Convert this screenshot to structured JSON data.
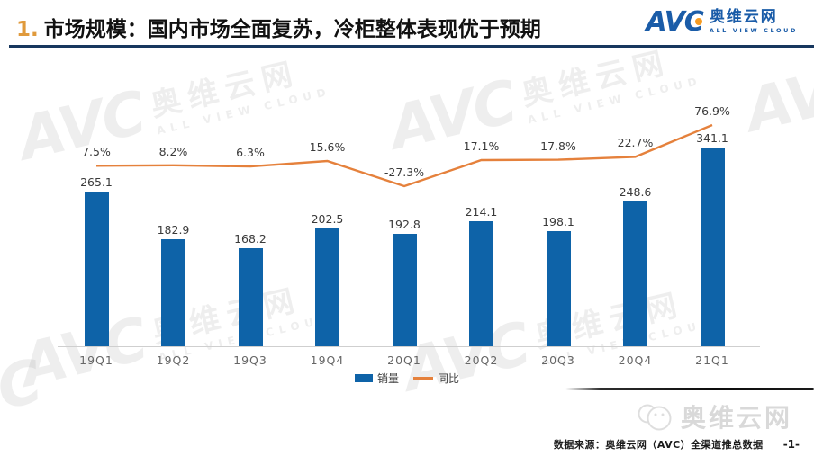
{
  "header": {
    "number": "1.",
    "title": "市场规模：国内市场全面复苏，冷柜整体表现优于预期",
    "accent_color": "#E09A3C",
    "rule_color": "#17375E"
  },
  "logo": {
    "abbr": "AVC",
    "name_cn": "奥维云网",
    "name_en": "ALL VIEW CLOUD",
    "brand_color": "#1A5CA8",
    "dot_color": "#F59B22"
  },
  "watermark": {
    "abbr": "AVC",
    "name_cn": "奥维云网",
    "name_en": "ALL VIEW CLOUD"
  },
  "chart_data": {
    "type": "bar",
    "categories": [
      "19Q1",
      "19Q2",
      "19Q3",
      "19Q4",
      "20Q1",
      "20Q2",
      "20Q3",
      "20Q4",
      "21Q1"
    ],
    "series": [
      {
        "name": "销量",
        "type": "bar",
        "color": "#0E63A8",
        "values": [
          265.1,
          182.9,
          168.2,
          202.5,
          192.8,
          214.1,
          198.1,
          248.6,
          341.1
        ]
      },
      {
        "name": "同比",
        "type": "line",
        "color": "#E5813C",
        "format": "percent",
        "values": [
          7.5,
          8.2,
          6.3,
          15.6,
          -27.3,
          17.1,
          17.8,
          22.7,
          76.9
        ]
      }
    ],
    "title": "",
    "xlabel": "",
    "ylabel": "",
    "value_labels": true,
    "gridlines": false,
    "axes_visible": false,
    "legend_position": "bottom",
    "bar_ylim": [
      0,
      380
    ],
    "line_ylim": [
      -60,
      110
    ]
  },
  "footer": {
    "wechat_name": "奥维云网",
    "source": "数据来源：奥维云网（AVC）全渠道推总数据",
    "page": "-1-"
  }
}
